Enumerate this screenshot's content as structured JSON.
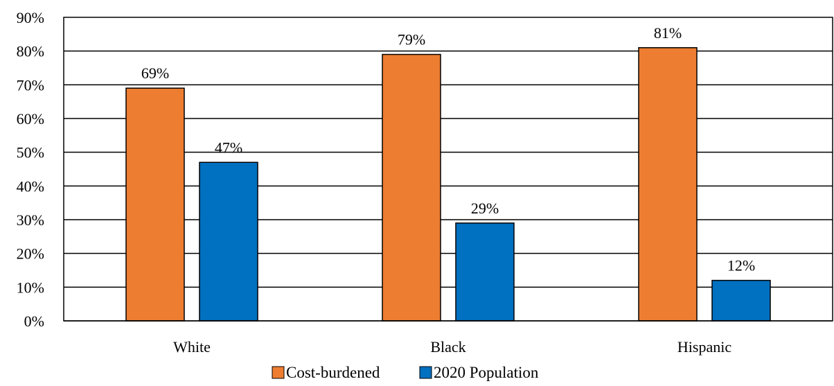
{
  "chart_data": {
    "type": "bar",
    "categories": [
      "White",
      "Black",
      "Hispanic"
    ],
    "series": [
      {
        "name": "Cost-burdened",
        "values": [
          69,
          79,
          81
        ],
        "labels": [
          "69%",
          "79%",
          "81%"
        ],
        "color": "#ED7D31"
      },
      {
        "name": "2020 Population",
        "values": [
          47,
          29,
          12
        ],
        "labels": [
          "47%",
          "29%",
          "12%"
        ],
        "color": "#0070C0"
      }
    ],
    "ylim": [
      0,
      90
    ],
    "yticks": [
      0,
      10,
      20,
      30,
      40,
      50,
      60,
      70,
      80,
      90
    ],
    "ytick_labels": [
      "0%",
      "10%",
      "20%",
      "30%",
      "40%",
      "50%",
      "60%",
      "70%",
      "80%",
      "90%"
    ],
    "grid": true,
    "legend_position": "bottom-center"
  }
}
